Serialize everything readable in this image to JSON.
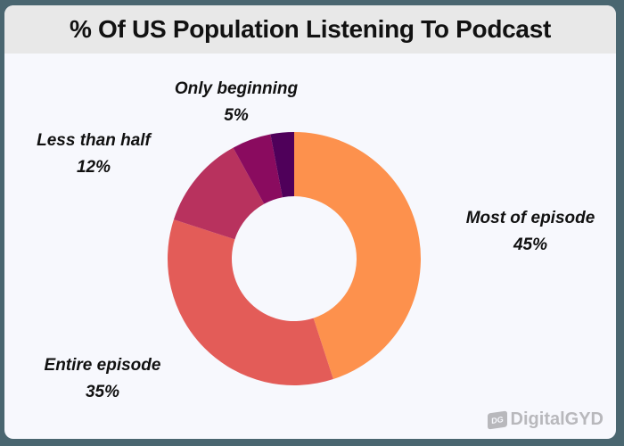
{
  "chart_data": {
    "type": "pie",
    "variant": "donut",
    "title": "% Of US Population Listening To Podcast",
    "categories": [
      "Most of episode",
      "Entire episode",
      "Less than half",
      "Only beginning",
      ""
    ],
    "values": [
      45,
      35,
      12,
      5,
      3
    ],
    "labels": [
      "45%",
      "35%",
      "12%",
      "5%",
      ""
    ],
    "colors": [
      "#fd914d",
      "#e35c58",
      "#b8325e",
      "#8a0b5f",
      "#4f005a"
    ],
    "legend": "none (direct labels)",
    "start_angle": "12 o'clock, clockwise"
  },
  "labels": {
    "most": {
      "name": "Most of episode",
      "pct": "45%"
    },
    "entire": {
      "name": "Entire episode",
      "pct": "35%"
    },
    "less": {
      "name": "Less than half",
      "pct": "12%"
    },
    "only": {
      "name": "Only beginning",
      "pct": "5%"
    }
  },
  "brand": {
    "icon_text": "DG",
    "name": "DigitalGYD"
  }
}
